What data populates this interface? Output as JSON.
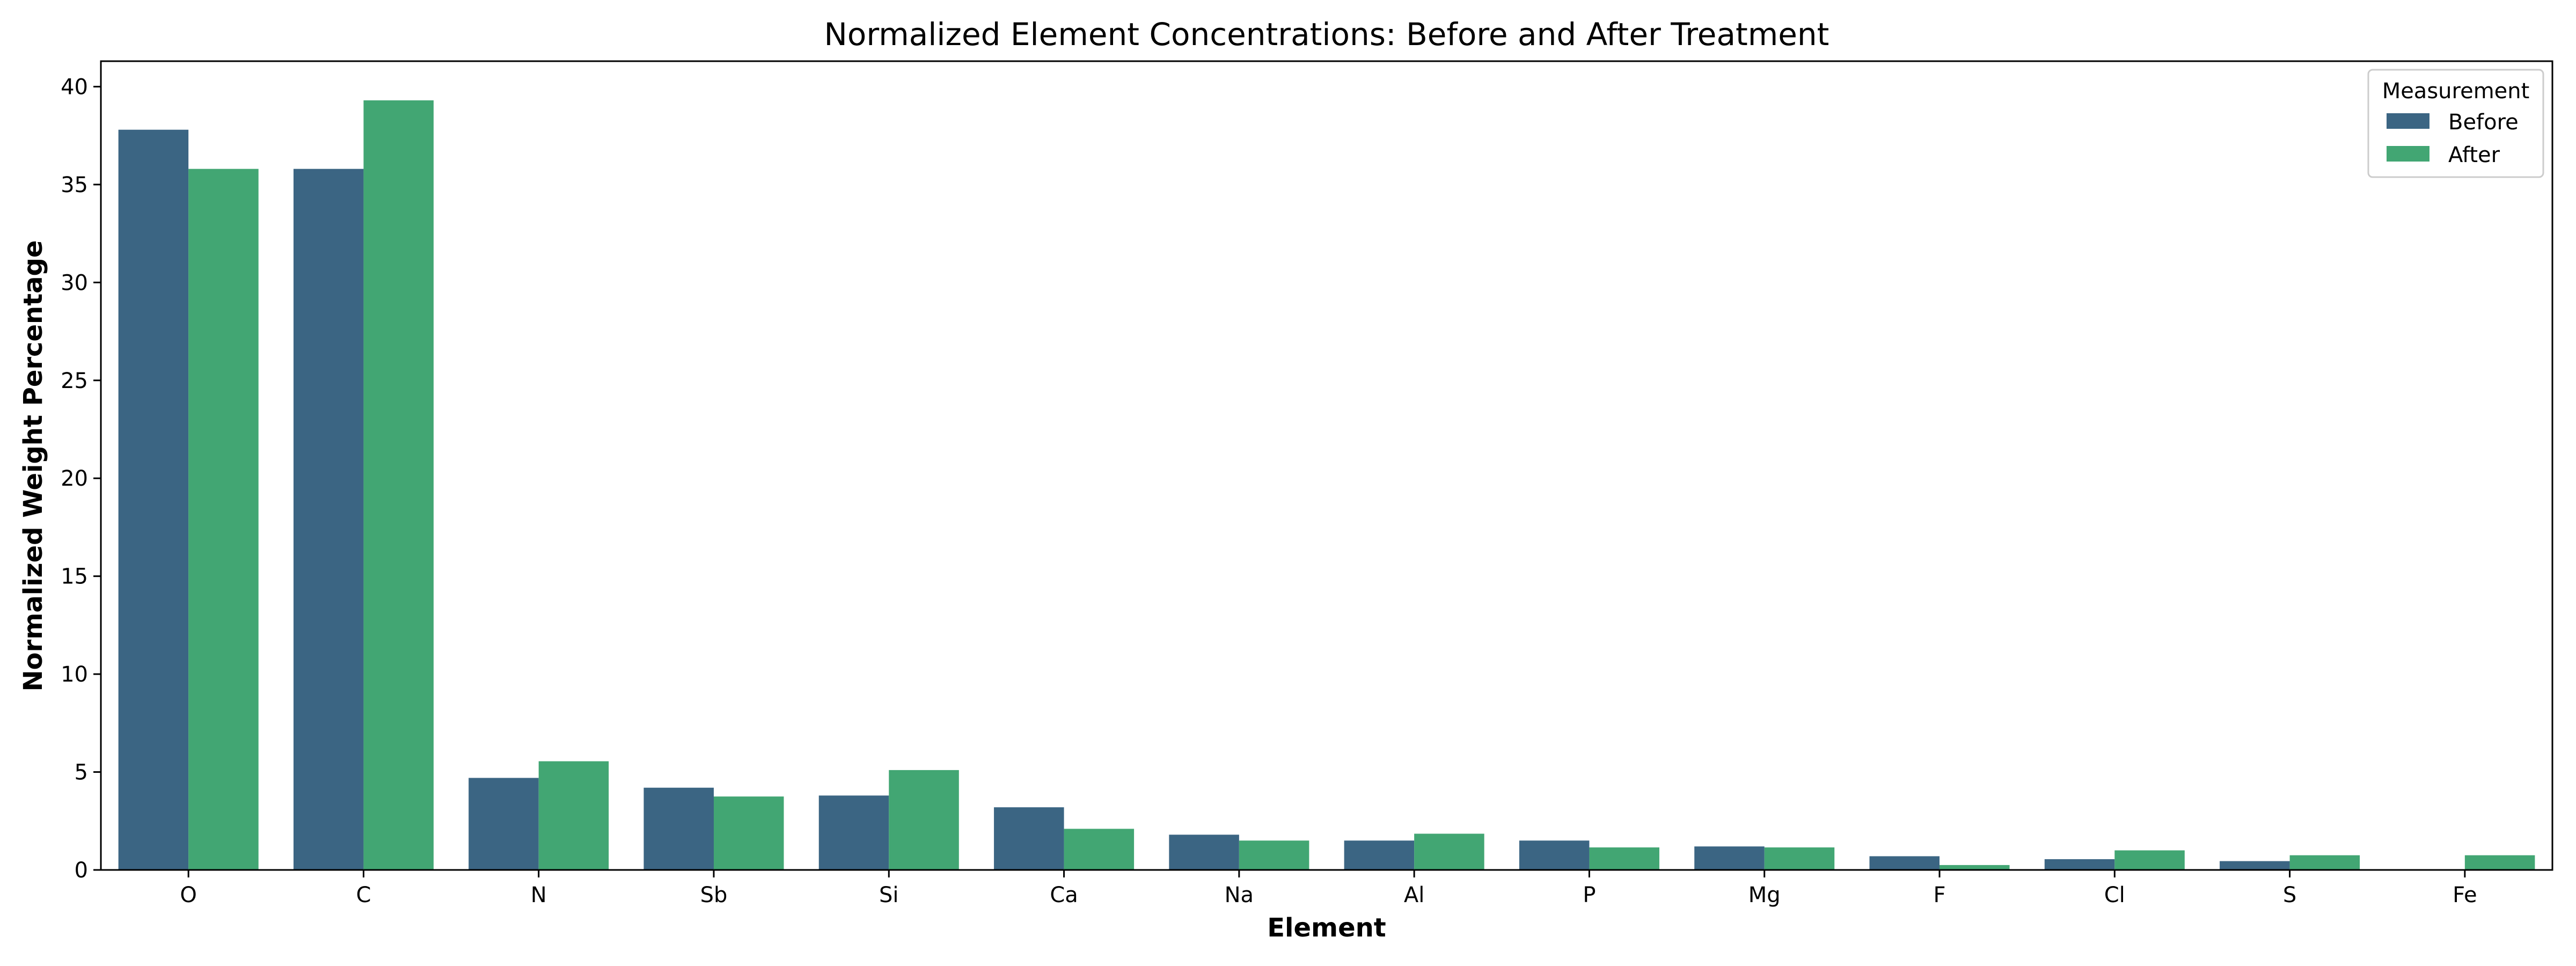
{
  "chart_data": {
    "type": "bar",
    "title": "Normalized Element Concentrations: Before and After Treatment",
    "xlabel": "Element",
    "ylabel": "Normalized Weight Percentage",
    "ylim": [
      0,
      41.3
    ],
    "yticks": [
      0,
      5,
      10,
      15,
      20,
      25,
      30,
      35,
      40
    ],
    "categories": [
      "O",
      "C",
      "N",
      "Sb",
      "Si",
      "Ca",
      "Na",
      "Al",
      "P",
      "Mg",
      "F",
      "Cl",
      "S",
      "Fe"
    ],
    "series": [
      {
        "name": "Before",
        "color": "#3b6583",
        "values": [
          37.8,
          35.8,
          4.7,
          4.2,
          3.8,
          3.2,
          1.8,
          1.5,
          1.5,
          1.2,
          0.7,
          0.55,
          0.45,
          0
        ]
      },
      {
        "name": "After",
        "color": "#42a673",
        "values": [
          35.8,
          39.3,
          5.55,
          3.75,
          5.1,
          2.1,
          1.5,
          1.85,
          1.15,
          1.15,
          0.25,
          1.0,
          0.75,
          0.75
        ]
      }
    ],
    "legend": {
      "title": "Measurement",
      "position": "top-right"
    },
    "grid": false
  }
}
